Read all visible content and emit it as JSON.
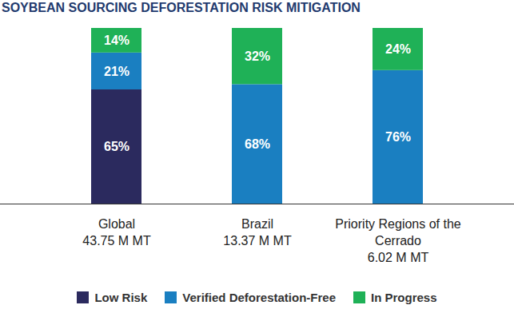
{
  "chart_data": {
    "type": "bar",
    "title": "SOYBEAN SOURCING DEFORESTATION RISK MITIGATION",
    "categories": [
      "Global\n43.75 M MT",
      "Brazil\n13.37 M MT",
      "Priority Regions of the\nCerrado\n6.02 M MT"
    ],
    "series": [
      {
        "name": "Low Risk",
        "color": "#2b2a5e",
        "values": [
          65,
          null,
          null
        ],
        "value_labels": [
          "65%",
          null,
          null
        ]
      },
      {
        "name": "Verified Deforestation-Free",
        "color": "#1a7fc1",
        "values": [
          21,
          68,
          76
        ],
        "value_labels": [
          "21%",
          "68%",
          "76%"
        ]
      },
      {
        "name": "In Progress",
        "color": "#1fb157",
        "values": [
          14,
          32,
          24
        ],
        "value_labels": [
          "14%",
          "32%",
          "24%"
        ]
      }
    ],
    "ylim": [
      0,
      100
    ],
    "stacked": true,
    "data_labels": true,
    "tick_labels": "x",
    "legend": "bottom"
  }
}
